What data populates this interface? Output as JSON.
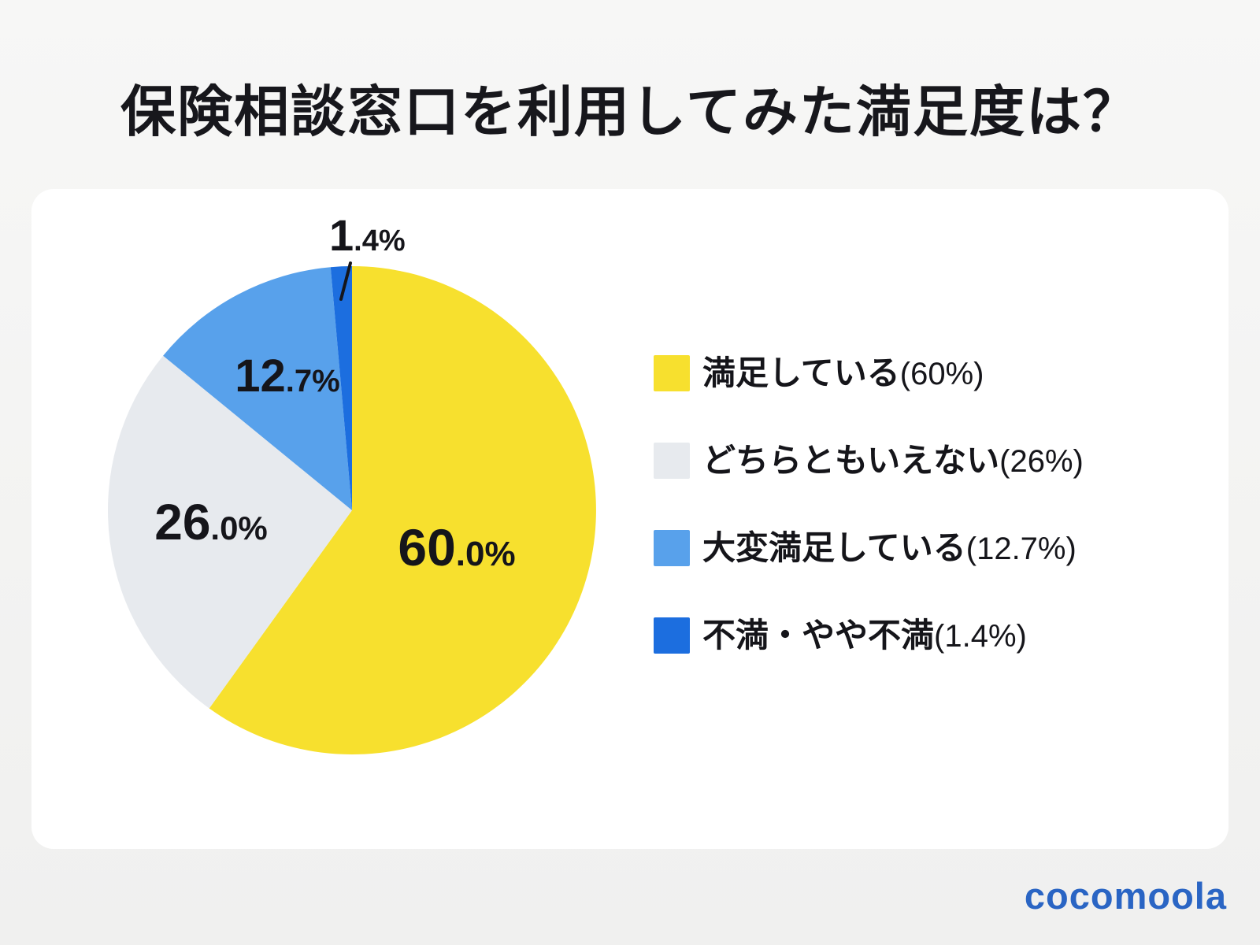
{
  "page": {
    "title": "保険相談窓口を利用してみた満足度は？",
    "logo": "cocomoola"
  },
  "colors": {
    "background": "#f3f3f2",
    "card": "#ffffff",
    "text": "#15151a",
    "brand_blue": "#2a65c4"
  },
  "chart_data": {
    "type": "pie",
    "title": "保険相談窓口を利用してみた満足度は？",
    "start_angle_deg": 0,
    "direction": "clockwise",
    "legend_position": "right",
    "slices": [
      {
        "label": "満足している",
        "value": 60.0,
        "value_label": "60.0%",
        "legend_paren": "(60%)",
        "color": "#f7e02e",
        "label_placement": "inside"
      },
      {
        "label": "どちらともいえない",
        "value": 26.0,
        "value_label": "26.0%",
        "legend_paren": "(26%)",
        "color": "#e7eaee",
        "label_placement": "inside"
      },
      {
        "label": "大変満足している",
        "value": 12.7,
        "value_label": "12.7%",
        "legend_paren": "(12.7%)",
        "color": "#58a1eb",
        "label_placement": "inside"
      },
      {
        "label": "不満・やや不満",
        "value": 1.4,
        "value_label": "1.4%",
        "legend_paren": "(1.4%)",
        "color": "#1c6edf",
        "label_placement": "outside-callout"
      }
    ]
  }
}
